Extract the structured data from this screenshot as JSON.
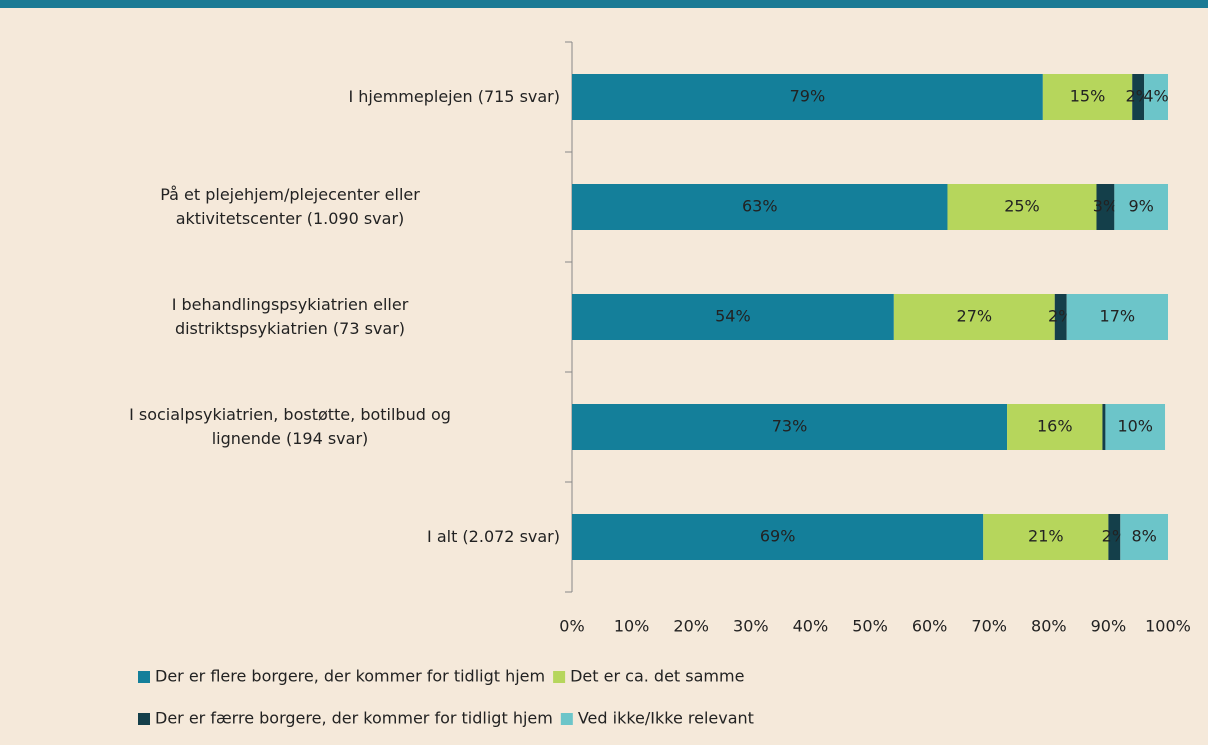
{
  "chart_data": {
    "type": "stacked-barh",
    "categories": [
      "I hjemmeplejen (715 svar)",
      "På et plejehjem/plejecenter eller aktivitetscenter (1.090 svar)",
      "I behandlingspsykiatrien eller distriktspsykiatrien (73 svar)",
      "I socialpsykiatrien, bostøtte, botilbud og lignende (194 svar)",
      "I alt (2.072 svar)"
    ],
    "series": [
      {
        "name": "Der er flere borgere, der kommer for tidligt hjem",
        "color": "#147f9a",
        "values": [
          79,
          63,
          54,
          73,
          69
        ],
        "value_labels": [
          "79%",
          "63%",
          "54%",
          "73%",
          "69%"
        ]
      },
      {
        "name": "Det er ca. det samme",
        "color": "#b6d65c",
        "values": [
          15,
          25,
          27,
          16,
          21
        ],
        "value_labels": [
          "15%",
          "25%",
          "27%",
          "16%",
          "21%"
        ]
      },
      {
        "name": "Der er færre borgere, der kommer for tidligt hjem",
        "color": "#143f4a",
        "values": [
          2,
          3,
          2,
          0.5,
          2
        ],
        "value_labels": [
          "2%",
          "3%",
          "2%",
          null,
          "2%"
        ]
      },
      {
        "name": "Ved ikke/Ikke relevant",
        "color": "#6cc5c9",
        "values": [
          4,
          9,
          17,
          10,
          8
        ],
        "value_labels": [
          "4%",
          "9%",
          "17%",
          "10%",
          "8%"
        ]
      }
    ],
    "xlim": [
      0,
      100
    ],
    "xticks": [
      {
        "value": 0,
        "label": "0%"
      },
      {
        "value": 10,
        "label": "10%"
      },
      {
        "value": 20,
        "label": "20%"
      },
      {
        "value": 30,
        "label": "30%"
      },
      {
        "value": 40,
        "label": "40%"
      },
      {
        "value": 50,
        "label": "50%"
      },
      {
        "value": 60,
        "label": "60%"
      },
      {
        "value": 70,
        "label": "70%"
      },
      {
        "value": 80,
        "label": "80%"
      },
      {
        "value": 90,
        "label": "90%"
      },
      {
        "value": 100,
        "label": "100%"
      }
    ]
  }
}
